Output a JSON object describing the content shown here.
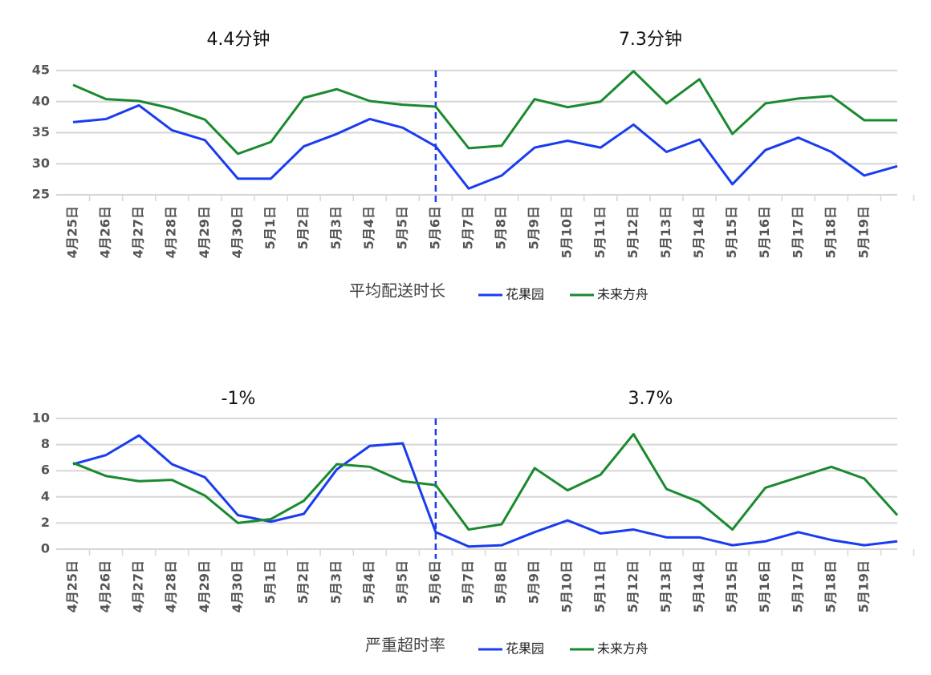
{
  "chart_data": [
    {
      "type": "line",
      "annotations": [
        "4.4分钟",
        "7.3分钟"
      ],
      "x_title": "平均配送时长",
      "categories": [
        "4月25日",
        "4月26日",
        "4月27日",
        "4月28日",
        "4月29日",
        "4月30日",
        "5月1日",
        "5月2日",
        "5月3日",
        "5月4日",
        "5月5日",
        "5月6日",
        "5月7日",
        "5月8日",
        "5月9日",
        "5月10日",
        "5月11日",
        "5月12日",
        "5月13日",
        "5月14日",
        "5月15日",
        "5月16日",
        "5月17日",
        "5月18日",
        "5月19日",
        null
      ],
      "series": [
        {
          "name": "花果园",
          "color": "#1a3cf0",
          "values": [
            36.7,
            37.2,
            39.4,
            35.4,
            33.8,
            27.6,
            27.6,
            32.8,
            34.8,
            37.2,
            35.8,
            32.8,
            26.0,
            28.1,
            32.6,
            33.7,
            32.6,
            36.3,
            31.9,
            33.9,
            26.7,
            32.2,
            34.2,
            31.9,
            28.1,
            29.6
          ]
        },
        {
          "name": "未来方舟",
          "color": "#1a8a2e",
          "values": [
            42.7,
            40.4,
            40.1,
            38.9,
            37.1,
            31.6,
            33.5,
            40.6,
            42.0,
            40.1,
            39.5,
            39.2,
            32.5,
            32.9,
            40.4,
            39.1,
            40.0,
            44.9,
            39.7,
            43.6,
            34.8,
            39.7,
            40.5,
            40.9,
            37.0,
            37.0
          ]
        }
      ],
      "ylim": [
        25,
        45
      ],
      "yticks": [
        25,
        30,
        35,
        40,
        45
      ],
      "grid": true,
      "divider_index": 11,
      "legend": "bottom"
    },
    {
      "type": "line",
      "annotations": [
        "-1%",
        "3.7%"
      ],
      "x_title": "严重超时率",
      "categories": [
        "4月25日",
        "4月26日",
        "4月27日",
        "4月28日",
        "4月29日",
        "4月30日",
        "5月1日",
        "5月2日",
        "5月3日",
        "5月4日",
        "5月5日",
        "5月6日",
        "5月7日",
        "5月8日",
        "5月9日",
        "5月10日",
        "5月11日",
        "5月12日",
        "5月13日",
        "5月14日",
        "5月15日",
        "5月16日",
        "5月17日",
        "5月18日",
        "5月19日",
        null
      ],
      "series": [
        {
          "name": "花果园",
          "color": "#1a3cf0",
          "values": [
            6.5,
            7.2,
            8.7,
            6.5,
            5.5,
            2.6,
            2.1,
            2.7,
            6.1,
            7.9,
            8.1,
            1.3,
            0.2,
            0.3,
            1.3,
            2.2,
            1.2,
            1.5,
            0.9,
            0.9,
            0.3,
            0.6,
            1.3,
            0.7,
            0.3,
            0.6
          ]
        },
        {
          "name": "未来方舟",
          "color": "#1a8a2e",
          "values": [
            6.6,
            5.6,
            5.2,
            5.3,
            4.1,
            2.0,
            2.3,
            3.7,
            6.5,
            6.3,
            5.2,
            4.9,
            1.5,
            1.9,
            6.2,
            4.5,
            5.7,
            8.8,
            4.6,
            3.6,
            1.5,
            4.7,
            5.5,
            6.3,
            5.4,
            2.6
          ]
        }
      ],
      "ylim": [
        0,
        10
      ],
      "yticks": [
        0,
        2,
        4,
        6,
        8,
        10
      ],
      "grid": true,
      "divider_index": 11,
      "legend": "bottom"
    }
  ]
}
